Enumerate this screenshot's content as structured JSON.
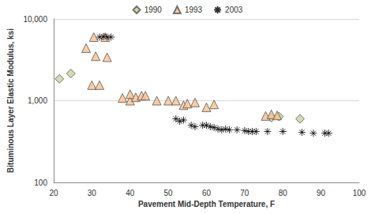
{
  "chart_data": {
    "type": "scatter",
    "x_label": "Pavement Mid-Depth Temperature, F",
    "y_label": "Bituminous Layer Elastic Modulus, ksi",
    "log": "y",
    "grid": true,
    "legend": "top",
    "xlim": [
      20,
      100
    ],
    "xticks": [
      20,
      30,
      40,
      50,
      60,
      70,
      80,
      90,
      100
    ],
    "ylim": [
      100,
      10000
    ],
    "yticks": [
      100,
      1000,
      10000
    ],
    "series": [
      {
        "name": "1990",
        "color": "#c3d69b",
        "marker": "diamond",
        "x": [
          21.5,
          24.5,
          77,
          79,
          84.5
        ],
        "values": [
          1850,
          2150,
          620,
          640,
          600
        ]
      },
      {
        "name": "1993",
        "color": "#fac08f",
        "marker": "triangle",
        "x": [
          28.5,
          30.5,
          31,
          33.5,
          34,
          30,
          32,
          38,
          40,
          40,
          41.5,
          43,
          44,
          47,
          50,
          52,
          54,
          55,
          57,
          60,
          62,
          75.5,
          77,
          78.5
        ],
        "values": [
          4400,
          6000,
          3500,
          6000,
          3400,
          1550,
          1550,
          1080,
          1000,
          1200,
          1100,
          1150,
          1150,
          1000,
          1000,
          1000,
          880,
          920,
          950,
          830,
          900,
          650,
          680,
          660
        ]
      },
      {
        "name": "2003",
        "color": "#000000",
        "marker": "asterisk",
        "x": [
          32,
          33,
          34,
          35,
          52,
          53,
          54,
          56,
          57,
          59,
          60,
          61,
          62,
          63,
          64,
          65,
          66,
          68,
          70,
          71,
          72,
          73,
          76,
          80,
          85,
          88,
          91,
          92
        ],
        "values": [
          6000,
          6100,
          6000,
          6000,
          600,
          560,
          580,
          500,
          480,
          500,
          500,
          480,
          470,
          450,
          440,
          450,
          440,
          440,
          430,
          420,
          420,
          420,
          420,
          420,
          410,
          400,
          400,
          400
        ]
      }
    ]
  }
}
